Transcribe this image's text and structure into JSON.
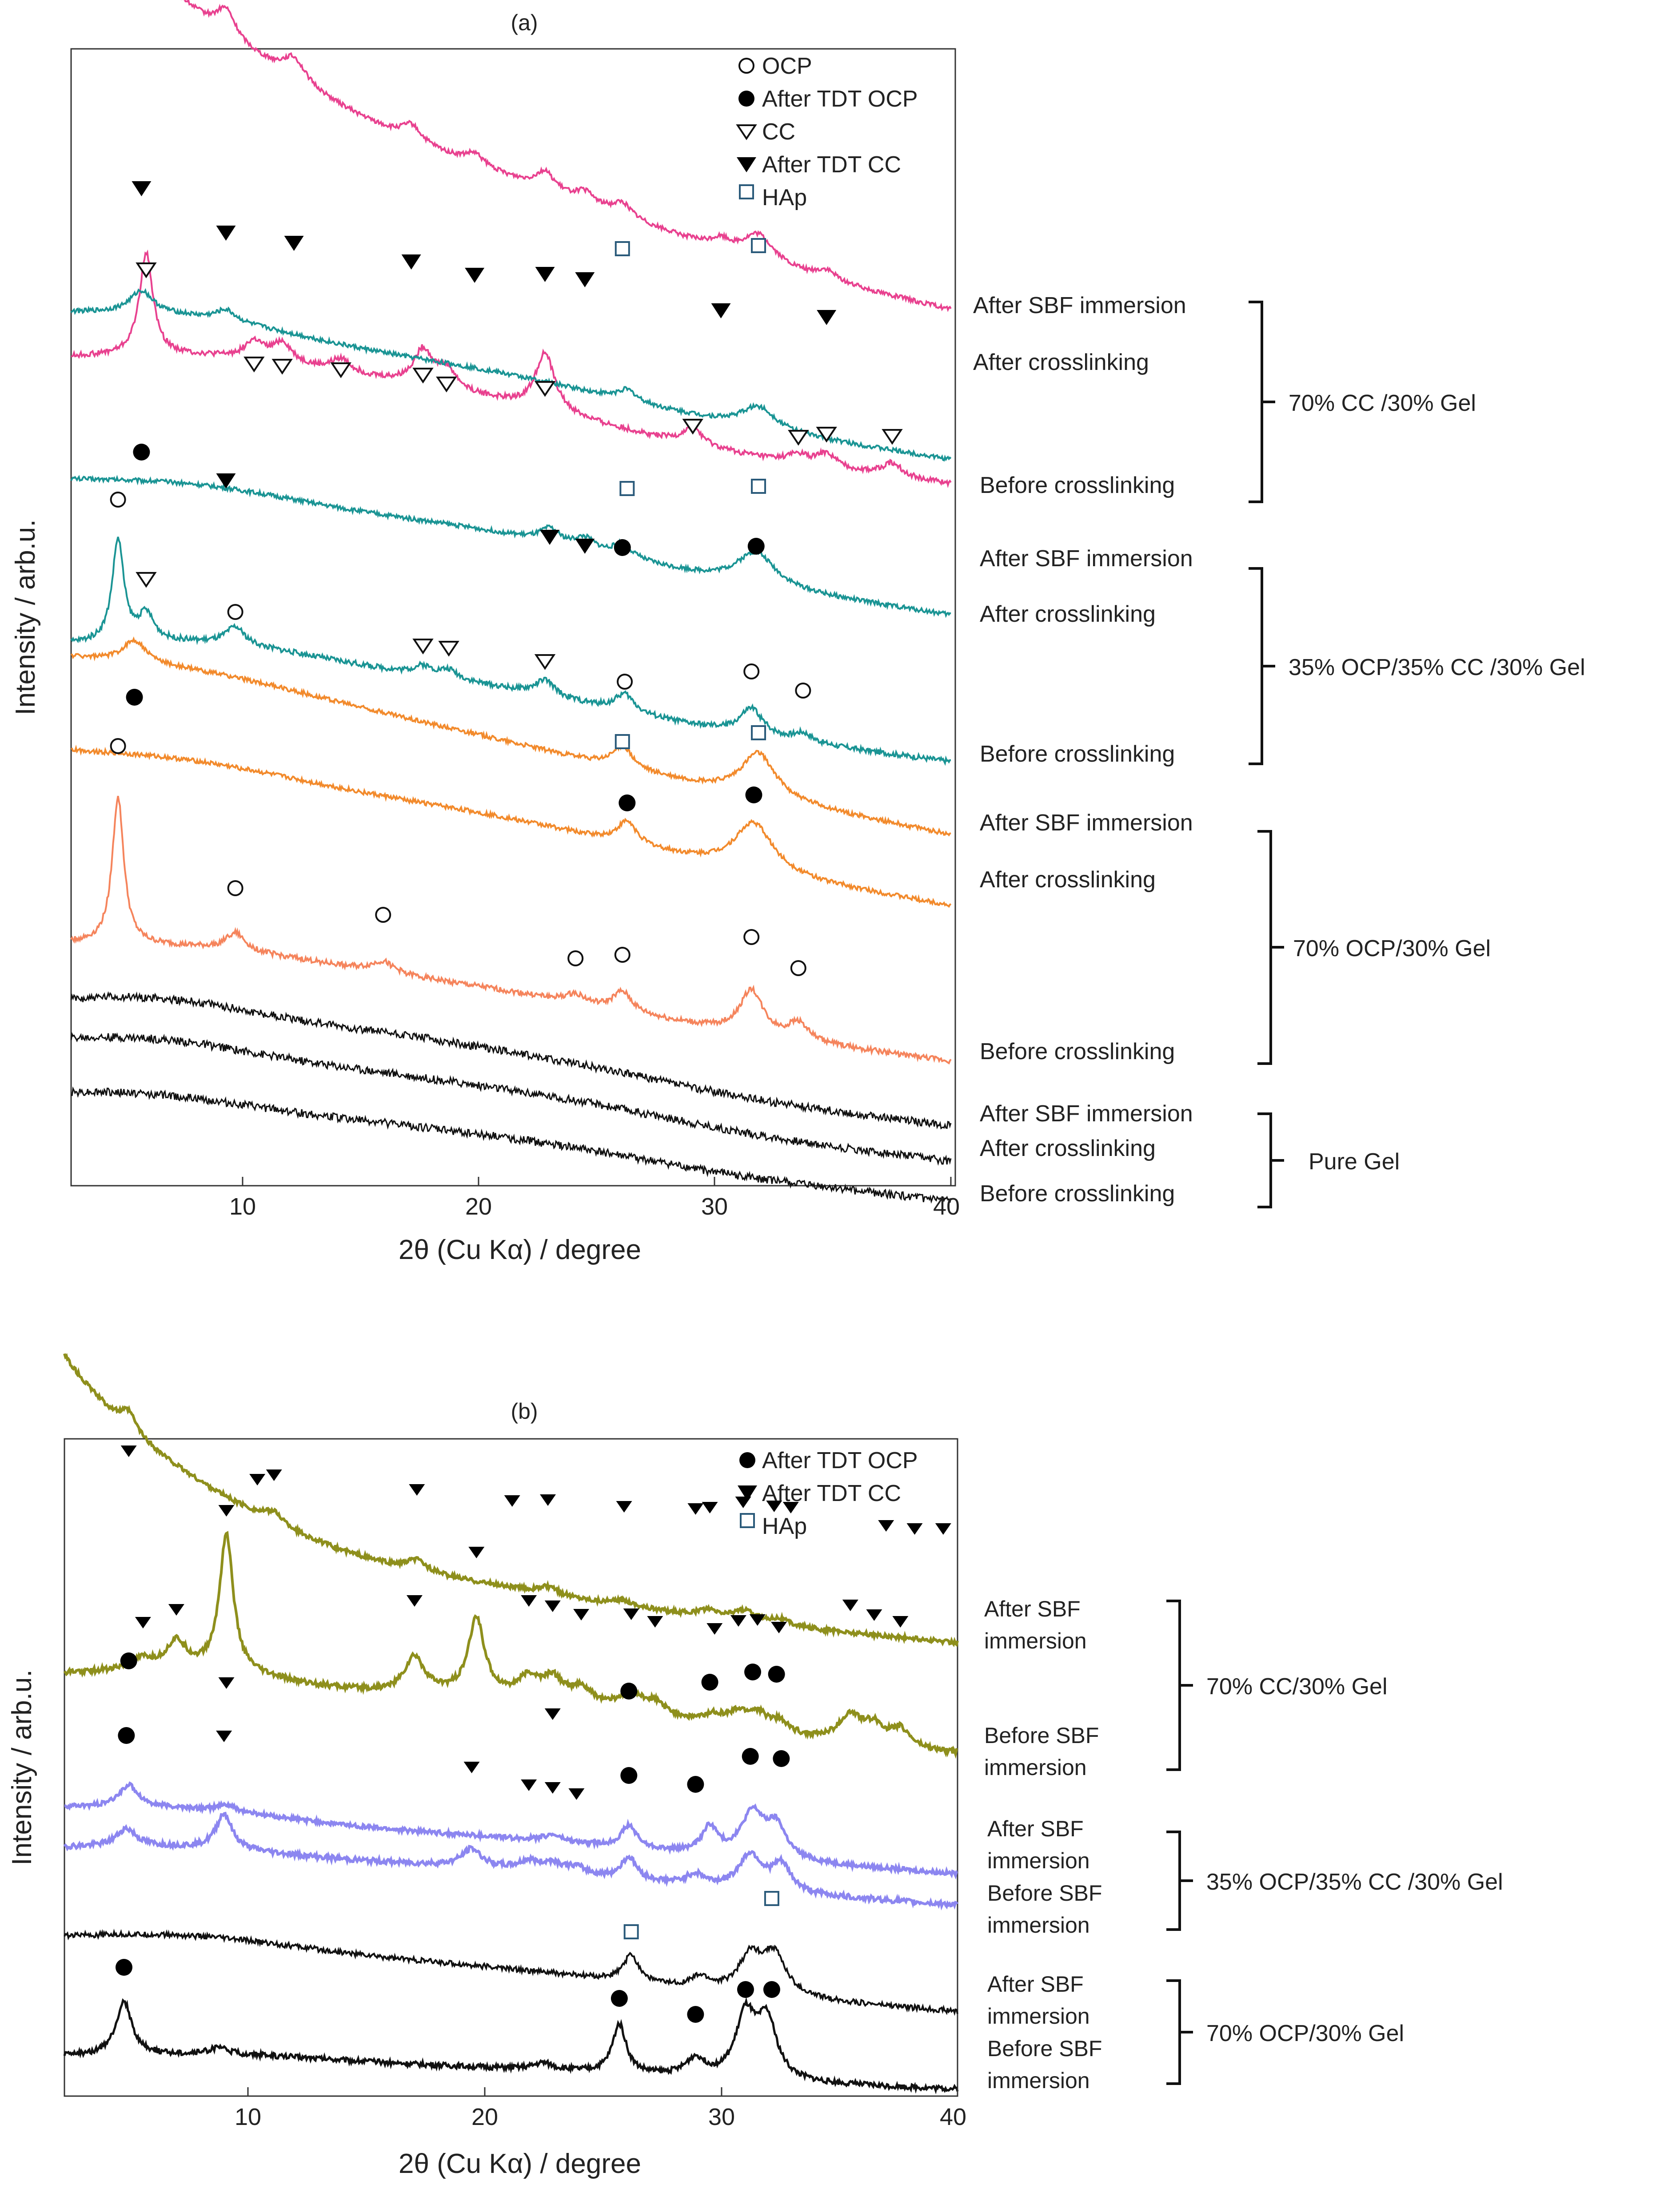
{
  "chart_data": [
    {
      "panel_label": "(a)",
      "type": "line",
      "xlabel": "2θ (Cu Kα) / degree",
      "ylabel": "Intensity / arb.u.",
      "xlim": [
        2.5,
        40
      ],
      "x_ticks": [
        10,
        20,
        30,
        40
      ],
      "y_ticks": "none",
      "grid": false,
      "legend_position": "top-right",
      "legend": [
        {
          "symbol": "open-circle",
          "label": "OCP"
        },
        {
          "symbol": "filled-circle",
          "label": "After TDT OCP"
        },
        {
          "symbol": "open-triangle",
          "label": "CC"
        },
        {
          "symbol": "filled-triangle",
          "label": "After TDT CC"
        },
        {
          "symbol": "open-square",
          "label": "HAp"
        }
      ],
      "groups": [
        {
          "label": "70% CC /30%  Gel",
          "traces": [
            "After SBF immersion",
            "After crosslinking",
            "Before crosslinking"
          ]
        },
        {
          "label": "35% OCP/35% CC /30%  Gel",
          "traces": [
            "After SBF immersion",
            "After crosslinking",
            "Before crosslinking"
          ]
        },
        {
          "label": "70% OCP/30% Gel",
          "traces": [
            "After SBF immersion",
            "After crosslinking",
            "Before crosslinking"
          ]
        },
        {
          "label": "Pure Gel",
          "traces": [
            "After SBF immersion",
            "After crosslinking",
            "Before crosslinking"
          ]
        }
      ],
      "series": [
        {
          "color": "#e8418f",
          "offset": 430,
          "decay": [
            520,
            70
          ],
          "hump": [
            [
              10,
              60,
              8
            ],
            [
              22,
              40,
              8
            ]
          ],
          "peaks": [
            [
              5.5,
              110,
              0.45
            ],
            [
              9.1,
              60,
              0.5
            ],
            [
              12,
              50,
              0.6
            ],
            [
              17,
              35,
              0.5
            ],
            [
              19.7,
              25,
              0.5
            ],
            [
              22.7,
              40,
              0.5
            ],
            [
              24.4,
              25,
              0.5
            ],
            [
              26,
              30,
              0.5
            ],
            [
              30.2,
              20,
              0.5
            ],
            [
              31.8,
              60,
              0.8
            ],
            [
              34.7,
              20,
              0.5
            ]
          ],
          "noise": 5
        },
        {
          "color": "#e8418f",
          "offset": 250,
          "decay": [
            0,
            10
          ],
          "hump": [
            [
              9,
              70,
              8
            ],
            [
              20,
              50,
              8
            ]
          ],
          "peaks": [
            [
              5.7,
              230,
              0.35
            ],
            [
              10.3,
              40,
              0.5
            ],
            [
              11.5,
              45,
              0.5
            ],
            [
              14,
              30,
              0.5
            ],
            [
              17.5,
              80,
              0.5
            ],
            [
              18.5,
              45,
              0.5
            ],
            [
              22.7,
              130,
              0.5
            ],
            [
              29,
              40,
              0.5
            ],
            [
              33.5,
              20,
              0.5
            ],
            [
              34.7,
              30,
              0.5
            ],
            [
              37.5,
              30,
              0.5
            ]
          ],
          "noise": 6
        },
        {
          "color": "#1a9494",
          "offset": 300,
          "decay": [
            0,
            10
          ],
          "hump": [
            [
              8,
              60,
              7
            ],
            [
              20,
              40,
              8
            ]
          ],
          "peaks": [
            [
              5.5,
              50,
              0.6
            ],
            [
              9.1,
              25,
              0.5
            ],
            [
              26.2,
              25,
              0.5
            ],
            [
              31.8,
              50,
              0.9
            ]
          ],
          "noise": 5
        },
        {
          "color": "#1a9494",
          "offset": 280,
          "decay": [
            0,
            10
          ],
          "hump": [
            [
              8,
              50,
              7
            ],
            [
              20,
              40,
              8
            ]
          ],
          "peaks": [
            [
              22.9,
              30,
              0.5
            ],
            [
              24.4,
              25,
              0.5
            ],
            [
              26,
              30,
              0.5
            ],
            [
              31.7,
              75,
              1.0
            ]
          ],
          "noise": 5
        },
        {
          "color": "#1a9494",
          "offset": 240,
          "decay": [
            0,
            10
          ],
          "hump": [
            [
              9,
              60,
              7
            ],
            [
              20,
              40,
              8
            ]
          ],
          "peaks": [
            [
              4.5,
              230,
              0.3
            ],
            [
              5.7,
              60,
              0.4
            ],
            [
              9.5,
              40,
              0.5
            ],
            [
              17.5,
              20,
              0.5
            ],
            [
              18.6,
              20,
              0.5
            ],
            [
              22.7,
              35,
              0.5
            ],
            [
              26.1,
              40,
              0.5
            ],
            [
              31.5,
              60,
              0.6
            ],
            [
              33.7,
              20,
              0.5
            ]
          ],
          "noise": 6
        },
        {
          "color": "#f28a2c",
          "offset": 380,
          "decay": [
            0,
            10
          ],
          "hump": [
            [
              8,
              40,
              7
            ],
            [
              18,
              20,
              8
            ]
          ],
          "peaks": [
            [
              5.2,
              50,
              0.6
            ],
            [
              26,
              50,
              0.5
            ],
            [
              31.8,
              100,
              0.9
            ]
          ],
          "noise": 5
        },
        {
          "color": "#f28a2c",
          "offset": 330,
          "decay": [
            0,
            10
          ],
          "hump": [
            [
              8,
              40,
              7
            ],
            [
              20,
              30,
              8
            ]
          ],
          "peaks": [
            [
              26.2,
              50,
              0.5
            ],
            [
              31.6,
              110,
              1.0
            ]
          ],
          "noise": 5
        },
        {
          "color": "#f5845c",
          "offset": 250,
          "decay": [
            0,
            10
          ],
          "hump": [
            [
              9,
              40,
              7
            ],
            [
              20,
              30,
              8
            ]
          ],
          "peaks": [
            [
              4.5,
              330,
              0.3
            ],
            [
              9.5,
              40,
              0.5
            ],
            [
              15.8,
              25,
              0.6
            ],
            [
              24,
              20,
              0.5
            ],
            [
              26,
              45,
              0.5
            ],
            [
              31.5,
              100,
              0.6
            ],
            [
              33.5,
              40,
              0.5
            ]
          ],
          "noise": 6
        },
        {
          "color": "#111111",
          "offset": 240,
          "decay": [
            0,
            10
          ],
          "hump": [
            [
              6,
              60,
              6
            ],
            [
              16,
              50,
              8
            ],
            [
              25,
              20,
              6
            ]
          ],
          "peaks": [],
          "noise": 9
        },
        {
          "color": "#111111",
          "offset": 240,
          "decay": [
            0,
            10
          ],
          "hump": [
            [
              6,
              50,
              6
            ],
            [
              16,
              40,
              8
            ],
            [
              25,
              20,
              6
            ]
          ],
          "peaks": [],
          "noise": 9
        },
        {
          "color": "#111111",
          "offset": 220,
          "decay": [
            0,
            10
          ],
          "hump": [
            [
              6,
              35,
              6
            ],
            [
              16,
              30,
              8
            ],
            [
              24,
              15,
              6
            ]
          ],
          "peaks": [],
          "noise": 9
        }
      ]
    },
    {
      "panel_label": "(b)",
      "type": "line",
      "xlabel": "2θ (Cu Kα) / degree",
      "ylabel": "Intensity / arb.u.",
      "xlim": [
        2.5,
        40
      ],
      "x_ticks": [
        10,
        20,
        30,
        40
      ],
      "y_ticks": "none",
      "grid": false,
      "legend_position": "top-right",
      "legend": [
        {
          "symbol": "filled-circle",
          "label": "After TDT OCP"
        },
        {
          "symbol": "filled-triangle",
          "label": "After TDT CC"
        },
        {
          "symbol": "open-square",
          "label": "HAp"
        }
      ],
      "groups": [
        {
          "label": "70% CC/30% Gel",
          "traces": [
            [
              "After SBF",
              "immersion"
            ],
            [
              "Before SBF",
              "immersion"
            ]
          ]
        },
        {
          "label": "35% OCP/35% CC /30% Gel",
          "traces": [
            [
              "After SBF",
              "immersion"
            ],
            [
              "Before SBF",
              "immersion"
            ]
          ]
        },
        {
          "label": "70% OCP/30% Gel",
          "traces": [
            [
              "After SBF",
              "immersion"
            ],
            [
              "Before SBF",
              "immersion"
            ]
          ]
        }
      ],
      "series": [
        {
          "color": "#8e8f1c",
          "offset": 170,
          "decay": [
            460,
            60
          ],
          "hump": [
            [
              8,
              40,
              6
            ],
            [
              20,
              20,
              8
            ]
          ],
          "peaks": [
            [
              5.2,
              40,
              0.4
            ],
            [
              11.3,
              25,
              0.5
            ],
            [
              17.3,
              25,
              0.5
            ],
            [
              22.8,
              15,
              0.5
            ],
            [
              26,
              12,
              0.5
            ],
            [
              29.5,
              15,
              0.5
            ],
            [
              31,
              25,
              0.6
            ],
            [
              32.5,
              15,
              0.5
            ]
          ],
          "noise": 5
        },
        {
          "color": "#8e8f1c",
          "offset": 160,
          "decay": [
            0,
            10
          ],
          "hump": [
            [
              8,
              50,
              6
            ],
            [
              22,
              50,
              8
            ]
          ],
          "peaks": [
            [
              5.8,
              20,
              0.5
            ],
            [
              7.2,
              60,
              0.5
            ],
            [
              9.3,
              310,
              0.35
            ],
            [
              17.2,
              80,
              0.5
            ],
            [
              19.8,
              170,
              0.4
            ],
            [
              22,
              40,
              0.5
            ],
            [
              23,
              45,
              0.5
            ],
            [
              24.2,
              30,
              0.5
            ],
            [
              26.3,
              40,
              0.5
            ],
            [
              27.3,
              25,
              0.5
            ],
            [
              29.8,
              20,
              0.5
            ],
            [
              30.8,
              30,
              0.5
            ],
            [
              31.6,
              35,
              0.5
            ],
            [
              32.5,
              25,
              0.5
            ],
            [
              35.5,
              60,
              0.6
            ],
            [
              36.5,
              40,
              0.5
            ],
            [
              37.6,
              40,
              0.5
            ]
          ],
          "noise": 6
        },
        {
          "color": "#8c86f0",
          "offset": 140,
          "decay": [
            0,
            10
          ],
          "hump": [
            [
              8,
              25,
              6
            ],
            [
              20,
              10,
              8
            ]
          ],
          "peaks": [
            [
              5.2,
              50,
              0.5
            ],
            [
              9.3,
              15,
              0.5
            ],
            [
              23,
              15,
              0.5
            ],
            [
              26.2,
              50,
              0.4
            ],
            [
              29.6,
              60,
              0.4
            ],
            [
              31.4,
              100,
              0.6
            ],
            [
              32.4,
              70,
              0.5
            ]
          ],
          "noise": 5
        },
        {
          "color": "#8c86f0",
          "offset": 120,
          "decay": [
            0,
            10
          ],
          "hump": [
            [
              8,
              25,
              6
            ],
            [
              20,
              20,
              8
            ]
          ],
          "peaks": [
            [
              5.1,
              40,
              0.5
            ],
            [
              9.2,
              80,
              0.4
            ],
            [
              19.6,
              40,
              0.5
            ],
            [
              22,
              20,
              0.5
            ],
            [
              23,
              20,
              0.5
            ],
            [
              24,
              15,
              0.5
            ],
            [
              26.2,
              50,
              0.4
            ],
            [
              29,
              25,
              0.5
            ],
            [
              31.3,
              80,
              0.6
            ],
            [
              32.6,
              60,
              0.5
            ]
          ],
          "noise": 6
        },
        {
          "color": "#111111",
          "offset": 150,
          "decay": [
            0,
            10
          ],
          "hump": [
            [
              8,
              40,
              7
            ],
            [
              20,
              20,
              8
            ]
          ],
          "peaks": [
            [
              26.3,
              60,
              0.4
            ],
            [
              29.2,
              25,
              0.5
            ],
            [
              31.3,
              80,
              0.6
            ],
            [
              32.3,
              90,
              0.6
            ]
          ],
          "noise": 6
        },
        {
          "color": "#111111",
          "offset": 70,
          "decay": [
            0,
            10
          ],
          "hump": [
            [
              10,
              20,
              7
            ],
            [
              22,
              10,
              8
            ]
          ],
          "peaks": [
            [
              5,
              120,
              0.4
            ],
            [
              9,
              15,
              0.5
            ],
            [
              22.6,
              15,
              0.5
            ],
            [
              25.8,
              110,
              0.35
            ],
            [
              29,
              40,
              0.5
            ],
            [
              31.1,
              140,
              0.5
            ],
            [
              32,
              130,
              0.5
            ]
          ],
          "noise": 6
        }
      ]
    }
  ]
}
